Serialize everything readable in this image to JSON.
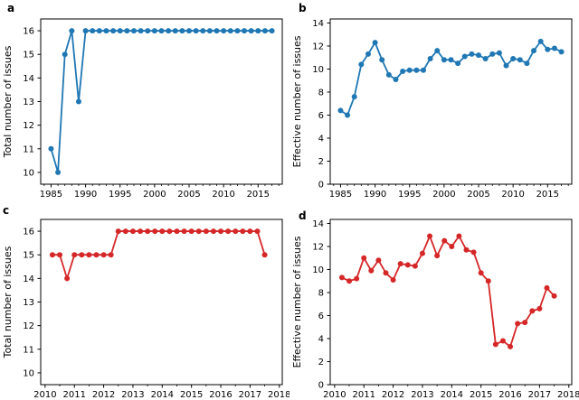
{
  "figure": {
    "background": "#ffffff",
    "axis_color": "#000000",
    "blue": "#1f77b4",
    "red": "#d62728"
  },
  "chart_data": [
    {
      "id": "a",
      "label": "a",
      "type": "line",
      "title": "",
      "xlabel": "",
      "ylabel": "Total number of issues",
      "color": "#1f77b4",
      "marker": "circle",
      "grid": false,
      "legend": "none",
      "xlim": [
        1983.5,
        2018.5
      ],
      "ylim": [
        9.5,
        16.5
      ],
      "xticks": [
        1985,
        1990,
        1995,
        2000,
        2005,
        2010,
        2015
      ],
      "yticks": [
        10,
        11,
        12,
        13,
        14,
        15,
        16
      ],
      "x_minor_step": 1,
      "x": [
        1985,
        1986,
        1987,
        1988,
        1989,
        1990,
        1991,
        1992,
        1993,
        1994,
        1995,
        1996,
        1997,
        1998,
        1999,
        2000,
        2001,
        2002,
        2003,
        2004,
        2005,
        2006,
        2007,
        2008,
        2009,
        2010,
        2011,
        2012,
        2013,
        2014,
        2015,
        2016,
        2017
      ],
      "y": [
        11,
        10,
        15,
        16,
        13,
        16,
        16,
        16,
        16,
        16,
        16,
        16,
        16,
        16,
        16,
        16,
        16,
        16,
        16,
        16,
        16,
        16,
        16,
        16,
        16,
        16,
        16,
        16,
        16,
        16,
        16,
        16,
        16
      ]
    },
    {
      "id": "b",
      "label": "b",
      "type": "line",
      "title": "",
      "xlabel": "",
      "ylabel": "Effective number of issues",
      "color": "#1f77b4",
      "marker": "circle",
      "grid": false,
      "legend": "none",
      "xlim": [
        1983.5,
        2018.5
      ],
      "ylim": [
        0,
        14.35
      ],
      "xticks": [
        1985,
        1990,
        1995,
        2000,
        2005,
        2010,
        2015
      ],
      "yticks": [
        0,
        2,
        4,
        6,
        8,
        10,
        12,
        14
      ],
      "x_minor_step": 1,
      "x": [
        1985,
        1986,
        1987,
        1988,
        1989,
        1990,
        1991,
        1992,
        1993,
        1994,
        1995,
        1996,
        1997,
        1998,
        1999,
        2000,
        2001,
        2002,
        2003,
        2004,
        2005,
        2006,
        2007,
        2008,
        2009,
        2010,
        2011,
        2012,
        2013,
        2014,
        2015,
        2016,
        2017
      ],
      "y": [
        6.4,
        6.0,
        7.6,
        10.4,
        11.3,
        12.3,
        10.8,
        9.5,
        9.1,
        9.8,
        9.9,
        9.9,
        9.9,
        10.9,
        11.6,
        10.8,
        10.8,
        10.5,
        11.1,
        11.3,
        11.2,
        10.9,
        11.3,
        11.4,
        10.3,
        10.9,
        10.8,
        10.5,
        11.6,
        12.4,
        11.7,
        11.8,
        11.5
      ]
    },
    {
      "id": "c",
      "label": "c",
      "type": "line",
      "title": "",
      "xlabel": "",
      "ylabel": "Total number of issues",
      "color": "#d62728",
      "marker": "circle",
      "grid": false,
      "legend": "none",
      "xlim": [
        2009.85,
        2018.1
      ],
      "ylim": [
        9.5,
        16.5
      ],
      "xticks": [
        2010,
        2011,
        2012,
        2013,
        2014,
        2015,
        2016,
        2017,
        2018
      ],
      "yticks": [
        10,
        11,
        12,
        13,
        14,
        15,
        16
      ],
      "x_minor_step": 0.5,
      "x": [
        2010.25,
        2010.5,
        2010.75,
        2011.0,
        2011.25,
        2011.5,
        2011.75,
        2012.0,
        2012.25,
        2012.5,
        2012.75,
        2013.0,
        2013.25,
        2013.5,
        2013.75,
        2014.0,
        2014.25,
        2014.5,
        2014.75,
        2015.0,
        2015.25,
        2015.5,
        2015.75,
        2016.0,
        2016.25,
        2016.5,
        2016.75,
        2017.0,
        2017.25,
        2017.5
      ],
      "y": [
        15,
        15,
        14,
        15,
        15,
        15,
        15,
        15,
        15,
        16,
        16,
        16,
        16,
        16,
        16,
        16,
        16,
        16,
        16,
        16,
        16,
        16,
        16,
        16,
        16,
        16,
        16,
        16,
        16,
        15
      ]
    },
    {
      "id": "d",
      "label": "d",
      "type": "line",
      "title": "",
      "xlabel": "",
      "ylabel": "Effective number of issues",
      "color": "#d62728",
      "marker": "circle",
      "grid": false,
      "legend": "none",
      "xlim": [
        2009.85,
        2018.1
      ],
      "ylim": [
        0,
        14.35
      ],
      "xticks": [
        2010,
        2011,
        2012,
        2013,
        2014,
        2015,
        2016,
        2017,
        2018
      ],
      "yticks": [
        0,
        2,
        4,
        6,
        8,
        10,
        12,
        14
      ],
      "x_minor_step": 0.5,
      "x": [
        2010.25,
        2010.5,
        2010.75,
        2011.0,
        2011.25,
        2011.5,
        2011.75,
        2012.0,
        2012.25,
        2012.5,
        2012.75,
        2013.0,
        2013.25,
        2013.5,
        2013.75,
        2014.0,
        2014.25,
        2014.5,
        2014.75,
        2015.0,
        2015.25,
        2015.5,
        2015.75,
        2016.0,
        2016.25,
        2016.5,
        2016.75,
        2017.0,
        2017.25,
        2017.5
      ],
      "y": [
        9.3,
        9.0,
        9.2,
        11.0,
        9.9,
        10.8,
        9.7,
        9.1,
        10.5,
        10.4,
        10.3,
        11.4,
        12.9,
        11.2,
        12.5,
        12.0,
        12.9,
        11.7,
        11.5,
        9.7,
        9.0,
        3.5,
        3.8,
        3.3,
        5.3,
        5.4,
        6.4,
        6.6,
        8.4,
        7.7
      ]
    }
  ]
}
